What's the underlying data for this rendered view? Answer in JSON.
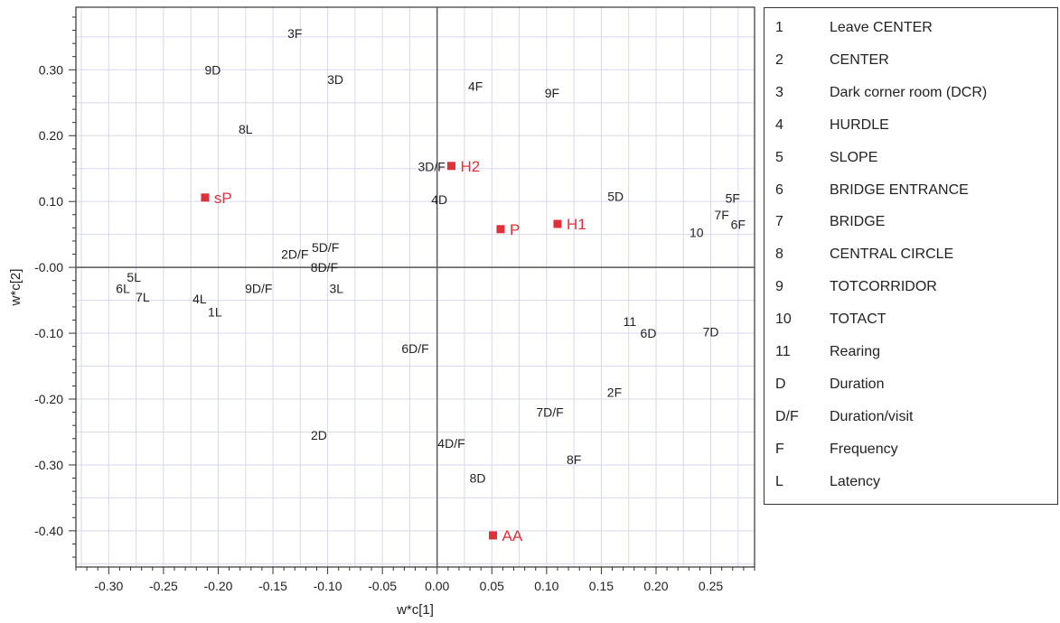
{
  "chart_data": {
    "type": "scatter",
    "title": "",
    "xlabel": "w*c[1]",
    "ylabel": "w*c[2]",
    "xlim": [
      -0.33,
      0.29
    ],
    "ylim": [
      -0.455,
      0.395
    ],
    "x_ticks": [
      "-0.30",
      "-0.25",
      "-0.20",
      "-0.15",
      "-0.10",
      "-0.05",
      "0.00",
      "0.05",
      "0.10",
      "0.15",
      "0.20",
      "0.25"
    ],
    "x_tick_values": [
      -0.3,
      -0.25,
      -0.2,
      -0.15,
      -0.1,
      -0.05,
      0.0,
      0.05,
      0.1,
      0.15,
      0.2,
      0.25
    ],
    "y_ticks": [
      "0.30",
      "0.20",
      "0.10",
      "-0.00",
      "-0.10",
      "-0.20",
      "-0.30",
      "-0.40"
    ],
    "y_tick_values": [
      0.3,
      0.2,
      0.1,
      0.0,
      -0.1,
      -0.2,
      -0.3,
      -0.4
    ],
    "grid": true,
    "legend_placement": "right",
    "colors": {
      "variables": "#222222",
      "responses": "#e0303a",
      "axes": "#555555",
      "grid": "#d8d8ee"
    },
    "variables": [
      {
        "label": "3F",
        "x": -0.13,
        "y": 0.355
      },
      {
        "label": "9D",
        "x": -0.205,
        "y": 0.3
      },
      {
        "label": "3D",
        "x": -0.093,
        "y": 0.285
      },
      {
        "label": "4F",
        "x": 0.035,
        "y": 0.275
      },
      {
        "label": "9F",
        "x": 0.105,
        "y": 0.265
      },
      {
        "label": "8L",
        "x": -0.175,
        "y": 0.21
      },
      {
        "label": "3D/F",
        "x": -0.005,
        "y": 0.153
      },
      {
        "label": "4D",
        "x": 0.002,
        "y": 0.103
      },
      {
        "label": "5D",
        "x": 0.163,
        "y": 0.108
      },
      {
        "label": "5F",
        "x": 0.27,
        "y": 0.105
      },
      {
        "label": "7F",
        "x": 0.26,
        "y": 0.08
      },
      {
        "label": "6F",
        "x": 0.275,
        "y": 0.065
      },
      {
        "label": "10",
        "x": 0.237,
        "y": 0.053
      },
      {
        "label": "2D/F",
        "x": -0.13,
        "y": 0.02
      },
      {
        "label": "5D/F",
        "x": -0.102,
        "y": 0.03
      },
      {
        "label": "8D/F",
        "x": -0.103,
        "y": 0.0
      },
      {
        "label": "5L",
        "x": -0.277,
        "y": -0.015
      },
      {
        "label": "6L",
        "x": -0.287,
        "y": -0.032
      },
      {
        "label": "7L",
        "x": -0.269,
        "y": -0.045
      },
      {
        "label": "9D/F",
        "x": -0.163,
        "y": -0.032
      },
      {
        "label": "3L",
        "x": -0.092,
        "y": -0.032
      },
      {
        "label": "4L",
        "x": -0.217,
        "y": -0.048
      },
      {
        "label": "1L",
        "x": -0.203,
        "y": -0.068
      },
      {
        "label": "11",
        "x": 0.176,
        "y": -0.082
      },
      {
        "label": "6D",
        "x": 0.193,
        "y": -0.1
      },
      {
        "label": "7D",
        "x": 0.25,
        "y": -0.098
      },
      {
        "label": "6D/F",
        "x": -0.02,
        "y": -0.123
      },
      {
        "label": "2F",
        "x": 0.162,
        "y": -0.19
      },
      {
        "label": "7D/F",
        "x": 0.103,
        "y": -0.22
      },
      {
        "label": "2D",
        "x": -0.108,
        "y": -0.255
      },
      {
        "label": "4D/F",
        "x": 0.013,
        "y": -0.267
      },
      {
        "label": "8F",
        "x": 0.125,
        "y": -0.292
      },
      {
        "label": "8D",
        "x": 0.037,
        "y": -0.32
      }
    ],
    "responses": [
      {
        "label": "H2",
        "x": 0.013,
        "y": 0.154
      },
      {
        "label": "sP",
        "x": -0.212,
        "y": 0.106
      },
      {
        "label": "P",
        "x": 0.058,
        "y": 0.058
      },
      {
        "label": "H1",
        "x": 0.11,
        "y": 0.066
      },
      {
        "label": "AA",
        "x": 0.051,
        "y": -0.407
      }
    ]
  },
  "legend": [
    {
      "code": "1",
      "desc": "Leave CENTER"
    },
    {
      "code": "2",
      "desc": "CENTER"
    },
    {
      "code": "3",
      "desc": "Dark corner room (DCR)"
    },
    {
      "code": "4",
      "desc": "HURDLE"
    },
    {
      "code": "5",
      "desc": "SLOPE"
    },
    {
      "code": "6",
      "desc": "BRIDGE ENTRANCE"
    },
    {
      "code": "7",
      "desc": "BRIDGE"
    },
    {
      "code": "8",
      "desc": "CENTRAL CIRCLE"
    },
    {
      "code": "9",
      "desc": "TOTCORRIDOR"
    },
    {
      "code": "10",
      "desc": "TOTACT"
    },
    {
      "code": "11",
      "desc": "Rearing"
    },
    {
      "code": "D",
      "desc": "Duration"
    },
    {
      "code": "D/F",
      "desc": "Duration/visit"
    },
    {
      "code": "F",
      "desc": "Frequency"
    },
    {
      "code": "L",
      "desc": "Latency"
    }
  ]
}
